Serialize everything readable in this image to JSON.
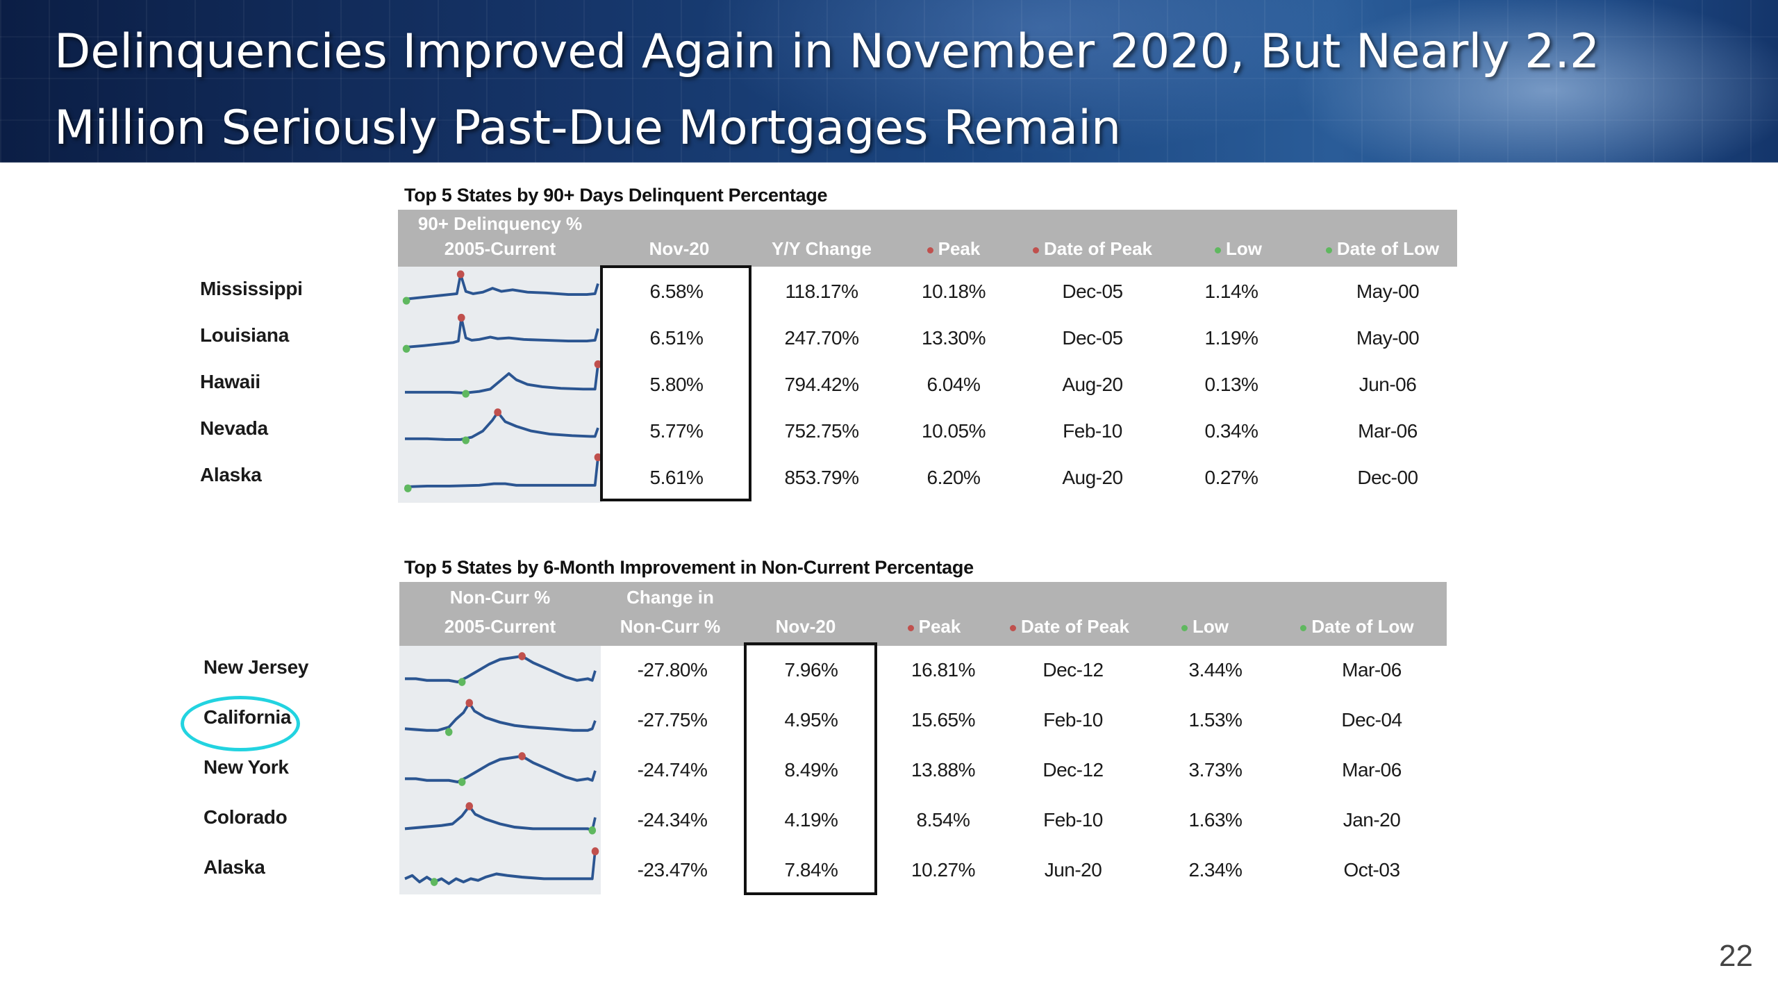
{
  "title": {
    "line1": "Delinquencies Improved Again in November 2020, But Nearly 2.2",
    "line2": "Million Seriously Past-Due Mortgages Remain"
  },
  "page_number": "22",
  "colors": {
    "peak_marker": "#c0504d",
    "low_marker": "#5fb85f",
    "spark_line": "#2b5591",
    "highlight_ring": "#22d3e0"
  },
  "table1": {
    "title": "Top 5 States by 90+ Days Delinquent Percentage",
    "headers": {
      "spark_line1": "90+ Delinquency %",
      "spark_line2": "2005-Current",
      "nov": "Nov-20",
      "yoy": "Y/Y Change",
      "peak": "Peak",
      "date_peak": "Date of Peak",
      "low": "Low",
      "date_low": "Date of Low"
    },
    "rows": [
      {
        "state": "Mississippi",
        "nov": "6.58%",
        "yoy": "118.17%",
        "peak": "10.18%",
        "date_peak": "Dec-05",
        "low": "1.14%",
        "date_low": "May-00",
        "spark": "p1"
      },
      {
        "state": "Louisiana",
        "nov": "6.51%",
        "yoy": "247.70%",
        "peak": "13.30%",
        "date_peak": "Dec-05",
        "low": "1.19%",
        "date_low": "May-00",
        "spark": "p1b"
      },
      {
        "state": "Hawaii",
        "nov": "5.80%",
        "yoy": "794.42%",
        "peak": "6.04%",
        "date_peak": "Aug-20",
        "low": "0.13%",
        "date_low": "Jun-06",
        "spark": "p2"
      },
      {
        "state": "Nevada",
        "nov": "5.77%",
        "yoy": "752.75%",
        "peak": "10.05%",
        "date_peak": "Feb-10",
        "low": "0.34%",
        "date_low": "Mar-06",
        "spark": "p3"
      },
      {
        "state": "Alaska",
        "nov": "5.61%",
        "yoy": "853.79%",
        "peak": "6.20%",
        "date_peak": "Aug-20",
        "low": "0.27%",
        "date_low": "Dec-00",
        "spark": "p4"
      }
    ]
  },
  "table2": {
    "title": "Top 5 States by 6-Month Improvement in Non-Current Percentage",
    "headers": {
      "spark_line1": "Non-Curr %",
      "spark_line2": "2005-Current",
      "chg_line1": "Change in",
      "chg_line2": "Non-Curr %",
      "nov": "Nov-20",
      "peak": "Peak",
      "date_peak": "Date of Peak",
      "low": "Low",
      "date_low": "Date of Low"
    },
    "rows": [
      {
        "state": "New Jersey",
        "chg": "-27.80%",
        "nov": "7.96%",
        "peak": "16.81%",
        "date_peak": "Dec-12",
        "low": "3.44%",
        "date_low": "Mar-06",
        "spark": "q1"
      },
      {
        "state": "California",
        "chg": "-27.75%",
        "nov": "4.95%",
        "peak": "15.65%",
        "date_peak": "Feb-10",
        "low": "1.53%",
        "date_low": "Dec-04",
        "spark": "q2"
      },
      {
        "state": "New York",
        "chg": "-24.74%",
        "nov": "8.49%",
        "peak": "13.88%",
        "date_peak": "Dec-12",
        "low": "3.73%",
        "date_low": "Mar-06",
        "spark": "q1"
      },
      {
        "state": "Colorado",
        "chg": "-24.34%",
        "nov": "4.19%",
        "peak": "8.54%",
        "date_peak": "Feb-10",
        "low": "1.63%",
        "date_low": "Jan-20",
        "spark": "q3"
      },
      {
        "state": "Alaska",
        "chg": "-23.47%",
        "nov": "7.84%",
        "peak": "10.27%",
        "date_peak": "Jun-20",
        "low": "2.34%",
        "date_low": "Oct-03",
        "spark": "q4"
      }
    ]
  }
}
